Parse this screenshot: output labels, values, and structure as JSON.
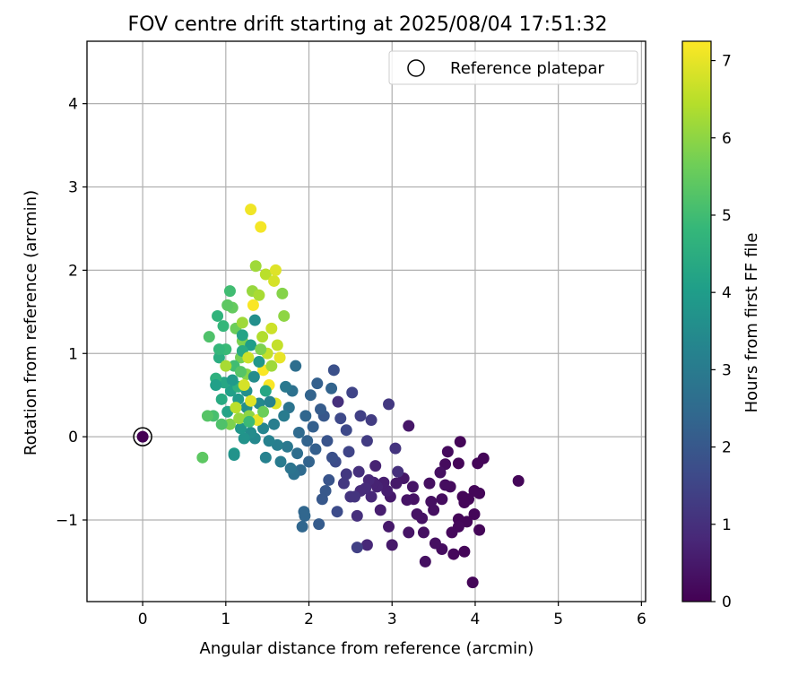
{
  "chart_data": {
    "type": "scatter",
    "title": "FOV centre drift starting at 2025/08/04 17:51:32",
    "xlabel": "Angular distance from reference (arcmin)",
    "ylabel": "Rotation from reference (arcmin)",
    "xlim": [
      -0.67,
      6.05
    ],
    "ylim": [
      -1.98,
      4.75
    ],
    "xticks": [
      "0",
      "1",
      "2",
      "3",
      "4",
      "5",
      "6"
    ],
    "yticks": [
      "−1",
      "0",
      "1",
      "2",
      "3",
      "4"
    ],
    "grid": true,
    "legend": {
      "location": "upper right",
      "entries": [
        "Reference platepar"
      ]
    },
    "reference_point": {
      "x": 0,
      "y": 0
    },
    "colorbar": {
      "label": "Hours from first FF file",
      "colormap": "viridis",
      "range": [
        0,
        7.25
      ],
      "ticks": [
        "0",
        "1",
        "2",
        "3",
        "4",
        "5",
        "6",
        "7"
      ]
    },
    "points": [
      [
        0,
        0,
        0.0
      ],
      [
        4.52,
        -0.53,
        0.1
      ],
      [
        4.1,
        -0.26,
        0.1
      ],
      [
        4.03,
        -0.32,
        0.1
      ],
      [
        4.05,
        -0.68,
        0.1
      ],
      [
        4.05,
        -1.12,
        0.1
      ],
      [
        3.99,
        -0.93,
        0.1
      ],
      [
        3.99,
        -0.65,
        0.1
      ],
      [
        3.92,
        -0.75,
        0.1
      ],
      [
        3.85,
        -0.72,
        0.1
      ],
      [
        3.82,
        -0.06,
        0.1
      ],
      [
        3.8,
        -0.32,
        0.1
      ],
      [
        3.8,
        -0.99,
        0.1
      ],
      [
        3.87,
        -0.79,
        0.1
      ],
      [
        3.9,
        -1.02,
        0.1
      ],
      [
        3.97,
        -1.75,
        0.1
      ],
      [
        3.87,
        -1.38,
        0.1
      ],
      [
        3.8,
        -1.08,
        0.15
      ],
      [
        3.72,
        -1.15,
        0.15
      ],
      [
        3.74,
        -1.41,
        0.15
      ],
      [
        3.7,
        -0.6,
        0.2
      ],
      [
        3.67,
        -0.18,
        0.2
      ],
      [
        3.64,
        -0.33,
        0.2
      ],
      [
        3.6,
        -0.75,
        0.25
      ],
      [
        3.6,
        -1.35,
        0.25
      ],
      [
        3.64,
        -0.58,
        0.25
      ],
      [
        3.58,
        -0.43,
        0.3
      ],
      [
        3.52,
        -1.28,
        0.3
      ],
      [
        3.5,
        -0.88,
        0.3
      ],
      [
        3.47,
        -0.78,
        0.3
      ],
      [
        3.45,
        -0.56,
        0.3
      ],
      [
        3.4,
        -1.5,
        0.3
      ],
      [
        3.38,
        -1.15,
        0.3
      ],
      [
        3.36,
        -0.98,
        0.35
      ],
      [
        3.3,
        -0.93,
        0.35
      ],
      [
        3.26,
        -0.75,
        0.35
      ],
      [
        3.25,
        -0.6,
        0.4
      ],
      [
        3.2,
        -1.15,
        0.4
      ],
      [
        3.18,
        -0.76,
        0.4
      ],
      [
        3.14,
        -0.5,
        0.45
      ],
      [
        3.2,
        0.13,
        0.45
      ],
      [
        3.05,
        -0.56,
        0.5
      ],
      [
        3.0,
        -1.3,
        0.5
      ],
      [
        2.98,
        -0.72,
        0.5
      ],
      [
        2.96,
        -1.08,
        0.5
      ],
      [
        2.94,
        -0.65,
        0.6
      ],
      [
        2.9,
        -0.55,
        0.6
      ],
      [
        2.86,
        -0.88,
        0.6
      ],
      [
        2.82,
        -0.6,
        0.7
      ],
      [
        2.8,
        -0.35,
        0.7
      ],
      [
        2.78,
        -0.55,
        0.7
      ],
      [
        2.75,
        -0.72,
        0.8
      ],
      [
        2.72,
        -0.52,
        0.8
      ],
      [
        2.7,
        -1.3,
        0.8
      ],
      [
        2.68,
        -0.62,
        0.9
      ],
      [
        2.62,
        -0.65,
        0.9
      ],
      [
        2.6,
        -0.42,
        1.0
      ],
      [
        2.58,
        -0.95,
        1.0
      ],
      [
        2.55,
        -0.72,
        1.1
      ],
      [
        2.5,
        -0.72,
        1.1
      ],
      [
        2.45,
        -0.45,
        1.2
      ],
      [
        2.42,
        -0.56,
        1.2
      ],
      [
        2.35,
        0.42,
        1.0
      ],
      [
        3.07,
        -0.42,
        1.0
      ],
      [
        3.04,
        -0.14,
        1.1
      ],
      [
        2.96,
        0.39,
        1.2
      ],
      [
        2.75,
        0.2,
        1.3
      ],
      [
        2.7,
        -0.05,
        1.3
      ],
      [
        2.62,
        0.25,
        1.4
      ],
      [
        2.58,
        -1.33,
        1.4
      ],
      [
        2.52,
        0.53,
        1.5
      ],
      [
        2.48,
        -0.18,
        1.5
      ],
      [
        2.45,
        0.08,
        1.6
      ],
      [
        2.38,
        0.22,
        1.6
      ],
      [
        2.34,
        -0.9,
        1.7
      ],
      [
        2.32,
        -0.3,
        1.7
      ],
      [
        2.3,
        0.8,
        1.8
      ],
      [
        2.28,
        -0.25,
        1.8
      ],
      [
        2.24,
        -0.52,
        1.9
      ],
      [
        2.22,
        -0.05,
        1.9
      ],
      [
        2.2,
        -0.65,
        2.0
      ],
      [
        2.18,
        0.25,
        2.0
      ],
      [
        2.16,
        -0.75,
        2.0
      ],
      [
        2.14,
        0.33,
        2.1
      ],
      [
        2.12,
        -1.05,
        2.1
      ],
      [
        2.08,
        -0.15,
        2.2
      ],
      [
        2.05,
        0.12,
        2.2
      ],
      [
        2.02,
        0.5,
        2.3
      ],
      [
        2.0,
        -0.3,
        2.3
      ],
      [
        1.98,
        -0.05,
        2.3
      ],
      [
        1.96,
        0.25,
        2.4
      ],
      [
        1.94,
        -0.9,
        2.4
      ],
      [
        1.92,
        -1.08,
        2.4
      ],
      [
        1.9,
        -0.4,
        2.5
      ],
      [
        1.88,
        0.05,
        2.5
      ],
      [
        1.86,
        -0.2,
        2.6
      ],
      [
        1.84,
        0.85,
        2.6
      ],
      [
        1.82,
        -0.45,
        2.7
      ],
      [
        1.8,
        0.55,
        2.7
      ],
      [
        1.78,
        -0.38,
        2.8
      ],
      [
        1.76,
        0.35,
        2.8
      ],
      [
        1.74,
        -0.12,
        2.9
      ],
      [
        1.72,
        0.6,
        2.9
      ],
      [
        1.7,
        0.25,
        3.0
      ],
      [
        1.66,
        -0.3,
        3.0
      ],
      [
        1.62,
        -0.1,
        3.1
      ],
      [
        1.58,
        0.15,
        3.1
      ],
      [
        1.52,
        -0.05,
        3.2
      ],
      [
        1.48,
        -0.25,
        3.2
      ],
      [
        1.45,
        0.1,
        3.3
      ],
      [
        1.4,
        0.4,
        3.4
      ],
      [
        2.1,
        0.64,
        2.2
      ],
      [
        2.27,
        0.58,
        2.3
      ],
      [
        1.95,
        -0.95,
        2.4
      ],
      [
        1.35,
        -0.02,
        3.4
      ],
      [
        1.3,
        0.05,
        3.5
      ],
      [
        1.25,
        0.35,
        3.6
      ],
      [
        1.22,
        -0.02,
        3.7
      ],
      [
        1.18,
        0.1,
        3.8
      ],
      [
        1.15,
        0.45,
        3.9
      ],
      [
        1.1,
        -0.2,
        4.0
      ],
      [
        1.06,
        0.55,
        4.1
      ],
      [
        1.02,
        0.3,
        4.2
      ],
      [
        0.98,
        0.65,
        4.3
      ],
      [
        0.95,
        0.45,
        4.4
      ],
      [
        0.92,
        0.95,
        4.5
      ],
      [
        0.88,
        0.7,
        4.6
      ],
      [
        0.9,
        1.45,
        4.7
      ],
      [
        0.97,
        1.33,
        4.8
      ],
      [
        1.0,
        1.05,
        4.9
      ],
      [
        1.05,
        1.75,
        5.0
      ],
      [
        0.85,
        0.25,
        5.1
      ],
      [
        0.8,
        1.2,
        5.2
      ],
      [
        0.78,
        0.25,
        5.3
      ],
      [
        0.72,
        -0.25,
        5.4
      ],
      [
        1.08,
        1.55,
        5.5
      ],
      [
        1.12,
        1.3,
        5.6
      ],
      [
        1.18,
        0.95,
        5.7
      ],
      [
        1.2,
        1.15,
        5.8
      ],
      [
        1.25,
        0.75,
        5.9
      ],
      [
        1.28,
        0.25,
        6.0
      ],
      [
        1.32,
        1.75,
        6.1
      ],
      [
        1.36,
        2.05,
        6.2
      ],
      [
        1.4,
        1.7,
        6.3
      ],
      [
        1.44,
        1.2,
        6.4
      ],
      [
        1.48,
        1.95,
        6.5
      ],
      [
        1.5,
        1.0,
        6.6
      ],
      [
        1.55,
        1.3,
        6.7
      ],
      [
        1.58,
        1.87,
        6.8
      ],
      [
        1.6,
        0.4,
        6.9
      ],
      [
        1.65,
        0.95,
        7.0
      ],
      [
        1.3,
        2.73,
        7.1
      ],
      [
        1.42,
        2.52,
        7.15
      ],
      [
        1.33,
        1.58,
        7.2
      ],
      [
        1.45,
        0.8,
        7.2
      ],
      [
        1.52,
        0.62,
        7.2
      ],
      [
        1.2,
        1.22,
        4.2
      ],
      [
        1.3,
        1.1,
        4.0
      ],
      [
        1.4,
        0.9,
        3.8
      ],
      [
        1.25,
        0.55,
        3.6
      ],
      [
        1.34,
        0.72,
        3.5
      ],
      [
        1.05,
        0.15,
        5.8
      ],
      [
        1.1,
        0.85,
        5.0
      ],
      [
        1.15,
        0.6,
        4.6
      ],
      [
        0.95,
        0.15,
        5.2
      ],
      [
        1.0,
        0.85,
        6.3
      ],
      [
        1.12,
        0.35,
        6.5
      ],
      [
        1.22,
        0.62,
        6.8
      ],
      [
        1.3,
        0.43,
        6.9
      ],
      [
        1.38,
        0.2,
        7.0
      ],
      [
        1.45,
        0.3,
        5.6
      ],
      [
        1.55,
        0.85,
        6.2
      ],
      [
        1.62,
        1.1,
        6.6
      ],
      [
        1.68,
        1.72,
        5.9
      ],
      [
        1.7,
        1.45,
        6.0
      ],
      [
        1.48,
        0.55,
        4.3
      ],
      [
        1.35,
        1.4,
        3.6
      ],
      [
        1.2,
        1.03,
        4.4
      ],
      [
        1.08,
        0.68,
        3.9
      ],
      [
        1.02,
        1.58,
        5.4
      ],
      [
        0.92,
        1.05,
        4.8
      ],
      [
        0.88,
        0.62,
        4.1
      ],
      [
        1.1,
        -0.22,
        3.7
      ],
      [
        1.16,
        0.22,
        6.1
      ],
      [
        1.27,
        0.95,
        6.7
      ],
      [
        1.6,
        2.0,
        6.9
      ],
      [
        1.2,
        1.37,
        6.2
      ],
      [
        1.42,
        1.05,
        5.8
      ],
      [
        1.28,
        0.18,
        4.9
      ],
      [
        1.18,
        0.78,
        5.3
      ],
      [
        1.53,
        0.42,
        3.2
      ]
    ]
  }
}
